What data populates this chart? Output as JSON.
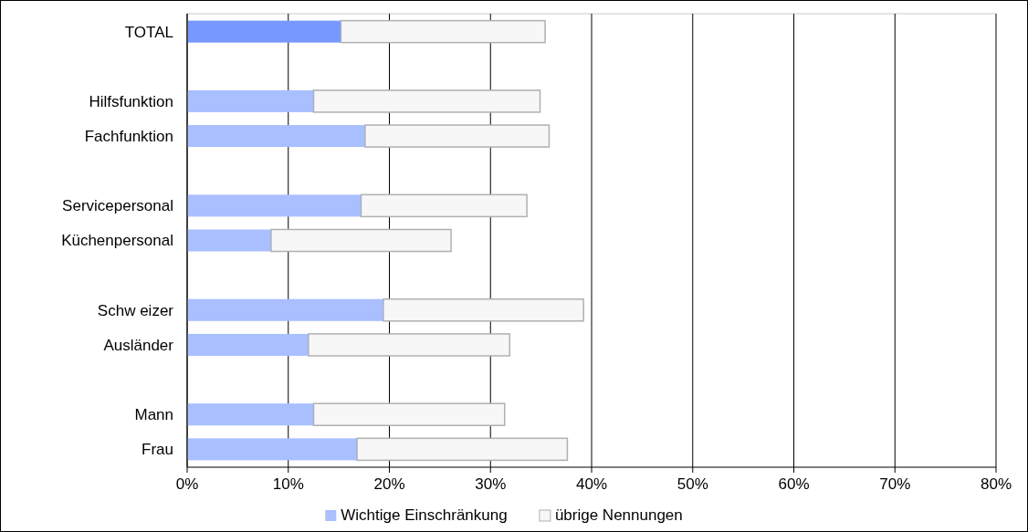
{
  "chart_data": {
    "type": "bar",
    "orientation": "horizontal",
    "stacked": true,
    "categories": [
      "TOTAL",
      null,
      "Hilfsfunktion",
      "Fachfunktion",
      null,
      "Servicepersonal",
      "Küchenpersonal",
      null,
      "Schw eizer",
      "Ausländer",
      null,
      "Mann",
      "Frau"
    ],
    "series": [
      {
        "name": "Wichtige Einschränkung",
        "color": "#a9bfff",
        "colors": [
          "#7799ff",
          null,
          "#a9bfff",
          "#a9bfff",
          null,
          "#a9bfff",
          "#a9bfff",
          null,
          "#a9bfff",
          "#a9bfff",
          null,
          "#a9bfff",
          "#a9bfff"
        ],
        "values": [
          15.2,
          null,
          12.5,
          17.6,
          null,
          17.2,
          8.3,
          null,
          19.4,
          12.0,
          null,
          12.5,
          16.8
        ]
      },
      {
        "name": "übrige Nennungen",
        "color": "#f7f7f7",
        "values": [
          20.2,
          null,
          22.4,
          18.2,
          null,
          16.4,
          17.8,
          null,
          19.8,
          19.9,
          null,
          18.9,
          20.8
        ]
      }
    ],
    "xlim": [
      0,
      80
    ],
    "xticks": [
      {
        "value": 0,
        "label": "0%"
      },
      {
        "value": 10,
        "label": "10%"
      },
      {
        "value": 20,
        "label": "20%"
      },
      {
        "value": 30,
        "label": "30%"
      },
      {
        "value": 40,
        "label": "40%"
      },
      {
        "value": 50,
        "label": "50%"
      },
      {
        "value": 60,
        "label": "60%"
      },
      {
        "value": 70,
        "label": "70%"
      },
      {
        "value": 80,
        "label": "80%"
      }
    ],
    "grid": "x",
    "legend": "bottom"
  }
}
